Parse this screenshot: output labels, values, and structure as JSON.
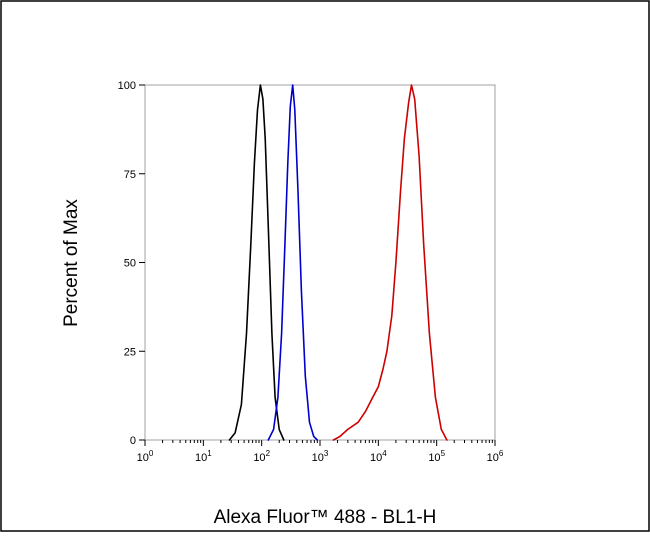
{
  "chart_data": {
    "type": "line",
    "title": "",
    "xlabel": "Alexa Fluor™ 488 - BL1-H",
    "ylabel": "Percent of Max",
    "x_scale": "log",
    "xlim": [
      1,
      1000000
    ],
    "ylim": [
      0,
      100
    ],
    "x_ticks": [
      {
        "value": 1,
        "base": "10",
        "exp": "0"
      },
      {
        "value": 10,
        "base": "10",
        "exp": "1"
      },
      {
        "value": 100,
        "base": "10",
        "exp": "2"
      },
      {
        "value": 1000,
        "base": "10",
        "exp": "3"
      },
      {
        "value": 10000,
        "base": "10",
        "exp": "4"
      },
      {
        "value": 100000,
        "base": "10",
        "exp": "5"
      },
      {
        "value": 1000000,
        "base": "10",
        "exp": "6"
      }
    ],
    "y_ticks": [
      {
        "value": 0,
        "label": "0"
      },
      {
        "value": 25,
        "label": "25"
      },
      {
        "value": 50,
        "label": "50"
      },
      {
        "value": 75,
        "label": "75"
      },
      {
        "value": 100,
        "label": "100"
      }
    ],
    "grid": false,
    "series": [
      {
        "color": "#000000",
        "points": [
          [
            28,
            0
          ],
          [
            35,
            2
          ],
          [
            45,
            10
          ],
          [
            55,
            30
          ],
          [
            65,
            55
          ],
          [
            75,
            78
          ],
          [
            85,
            93
          ],
          [
            95,
            100
          ],
          [
            105,
            96
          ],
          [
            115,
            85
          ],
          [
            130,
            60
          ],
          [
            150,
            30
          ],
          [
            170,
            12
          ],
          [
            200,
            3
          ],
          [
            240,
            0
          ]
        ]
      },
      {
        "color": "#0000cc",
        "points": [
          [
            130,
            0
          ],
          [
            160,
            3
          ],
          [
            190,
            12
          ],
          [
            220,
            30
          ],
          [
            250,
            55
          ],
          [
            280,
            78
          ],
          [
            310,
            94
          ],
          [
            340,
            100
          ],
          [
            370,
            93
          ],
          [
            420,
            70
          ],
          [
            480,
            42
          ],
          [
            560,
            18
          ],
          [
            660,
            5
          ],
          [
            780,
            1
          ],
          [
            900,
            0
          ]
        ]
      },
      {
        "color": "#cc0000",
        "points": [
          [
            1700,
            0
          ],
          [
            2200,
            1
          ],
          [
            3000,
            3
          ],
          [
            4500,
            5
          ],
          [
            6000,
            8
          ],
          [
            8000,
            12
          ],
          [
            10000,
            15
          ],
          [
            12000,
            20
          ],
          [
            14000,
            25
          ],
          [
            17000,
            35
          ],
          [
            20000,
            50
          ],
          [
            24000,
            70
          ],
          [
            28000,
            85
          ],
          [
            33000,
            95
          ],
          [
            37000,
            100
          ],
          [
            42000,
            96
          ],
          [
            50000,
            80
          ],
          [
            60000,
            55
          ],
          [
            75000,
            30
          ],
          [
            95000,
            12
          ],
          [
            120000,
            3
          ],
          [
            150000,
            0
          ]
        ]
      }
    ]
  }
}
